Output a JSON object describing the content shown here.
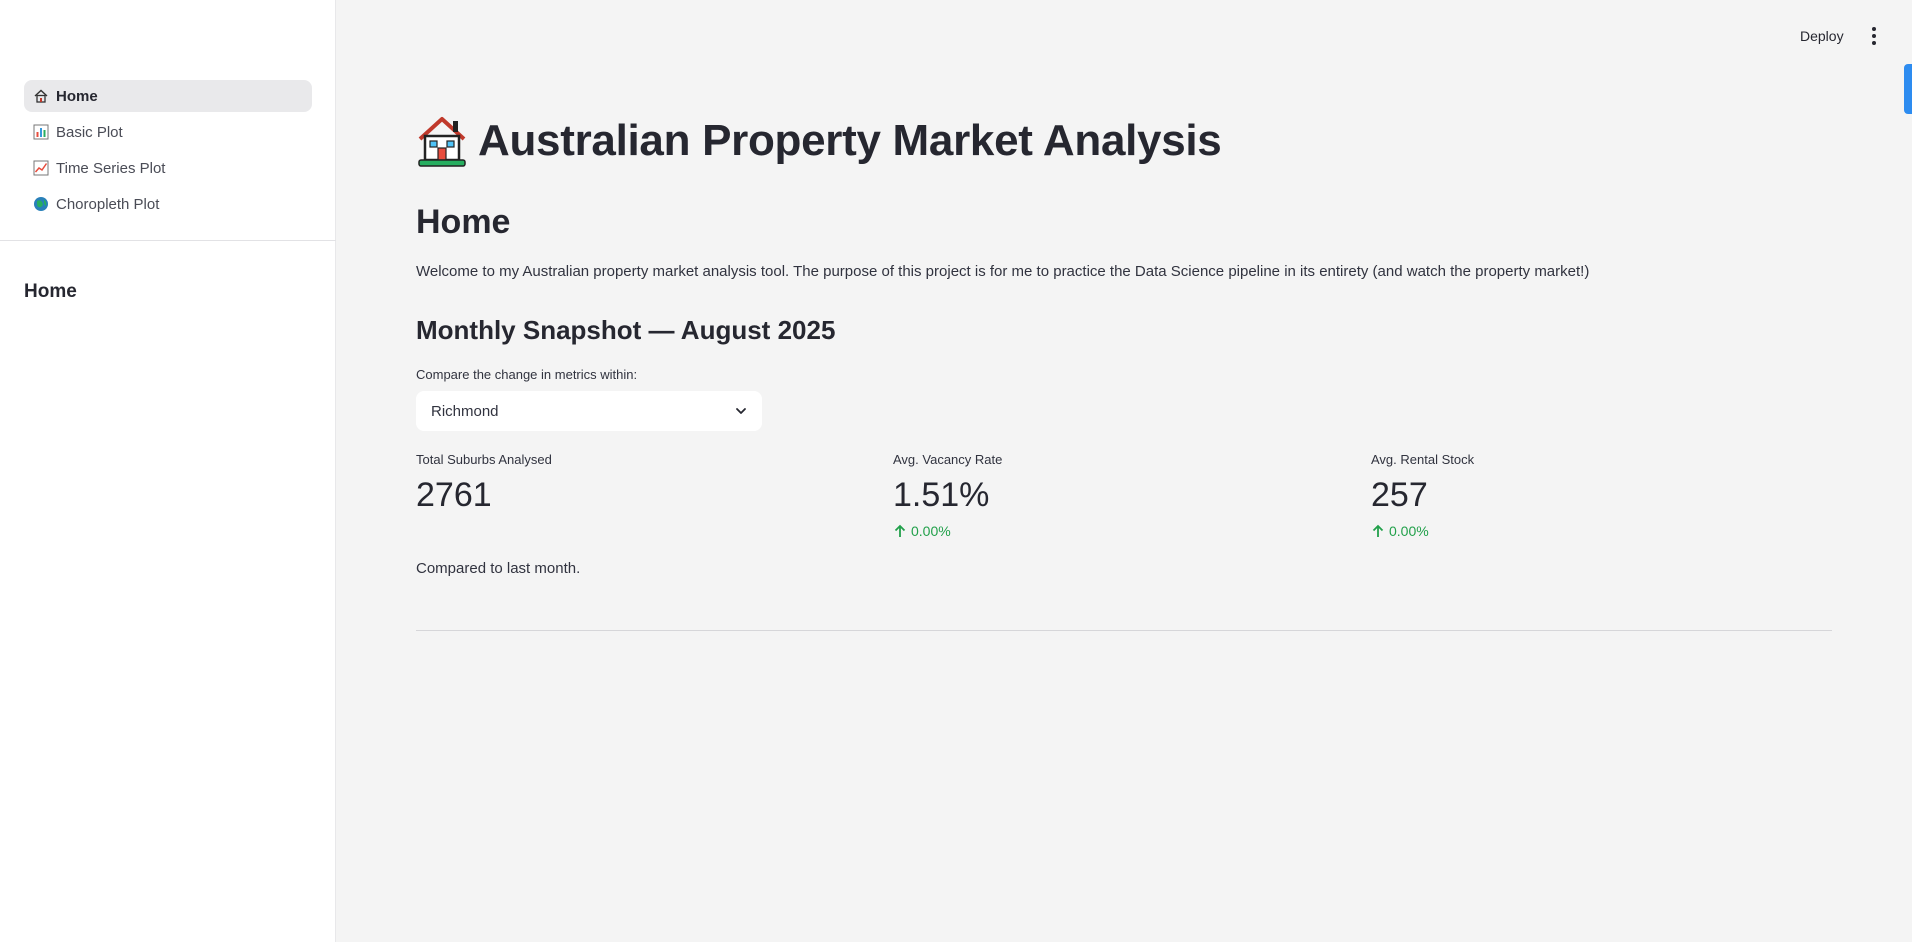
{
  "header": {
    "deploy_label": "Deploy",
    "menu_icon": "more-vertical-icon"
  },
  "sidebar": {
    "nav": [
      {
        "label": "Home",
        "icon": "house-icon",
        "active": true
      },
      {
        "label": "Basic Plot",
        "icon": "bar-chart-icon",
        "active": false
      },
      {
        "label": "Time Series Plot",
        "icon": "line-chart-icon",
        "active": false
      },
      {
        "label": "Choropleth Plot",
        "icon": "globe-icon",
        "active": false
      }
    ],
    "section_heading": "Home"
  },
  "main": {
    "title": "Australian Property Market Analysis",
    "title_icon": "house-with-garden-icon",
    "heading": "Home",
    "intro": "Welcome to my Australian property market analysis tool. The purpose of this project is for me to practice the Data Science pipeline in its entirety (and watch the property market!)",
    "snapshot_heading": "Monthly Snapshot — August 2025",
    "select": {
      "label": "Compare the change in metrics within:",
      "value": "Richmond"
    },
    "metrics": [
      {
        "label": "Total Suburbs Analysed",
        "value": "2761",
        "delta": null
      },
      {
        "label": "Avg. Vacancy Rate",
        "value": "1.51%",
        "delta": "0.00%"
      },
      {
        "label": "Avg. Rental Stock",
        "value": "257",
        "delta": "0.00%"
      }
    ],
    "note": "Compared to last month."
  },
  "colors": {
    "accent": "#2d8cf0",
    "delta_positive": "#21a04a",
    "sidebar_bg": "#ffffff",
    "main_bg": "#f4f4f4"
  }
}
